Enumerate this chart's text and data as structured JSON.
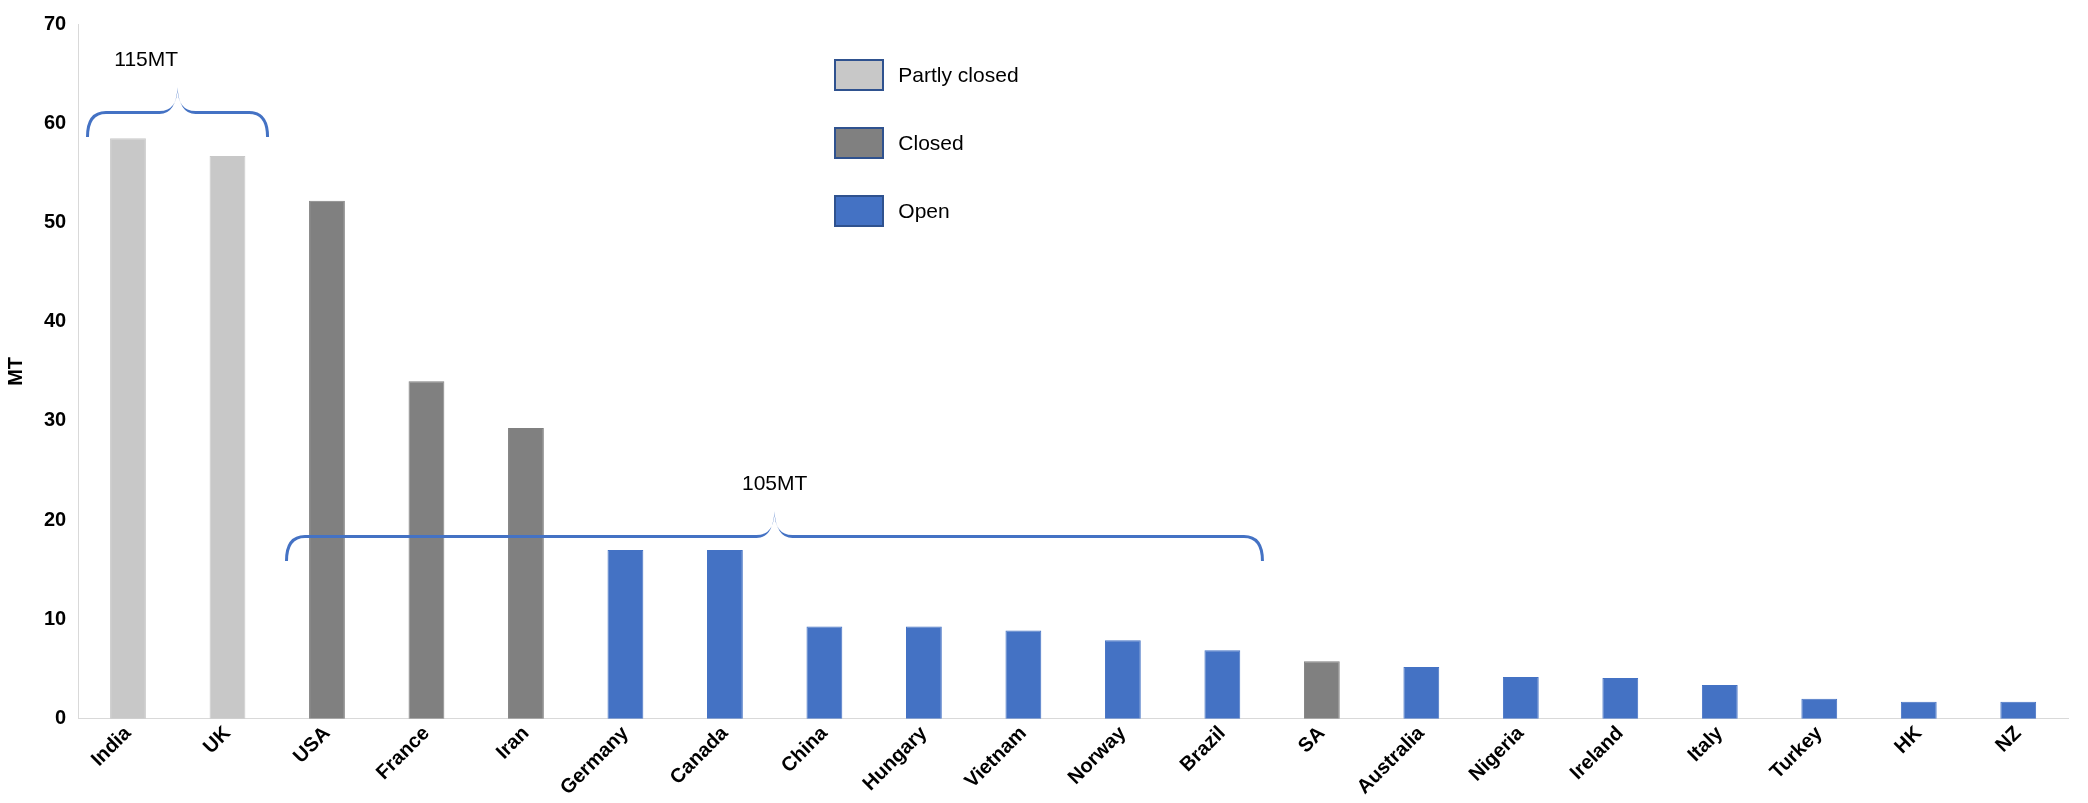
{
  "chart_data": {
    "type": "bar",
    "ylabel": "MT",
    "categories": [
      "India",
      "UK",
      "USA",
      "France",
      "Iran",
      "Germany",
      "Canada",
      "China",
      "Hungary",
      "Vietnam",
      "Norway",
      "Brazil",
      "SA",
      "Australia",
      "Nigeria",
      "Ireland",
      "Italy",
      "Turkey",
      "HK",
      "NZ"
    ],
    "series": [
      {
        "name": "Partly closed",
        "color": "#c8c8c8",
        "values": [
          58.5,
          56.7,
          null,
          null,
          null,
          null,
          null,
          null,
          null,
          null,
          null,
          null,
          null,
          null,
          null,
          null,
          null,
          null,
          null,
          null
        ]
      },
      {
        "name": "Closed",
        "color": "#808080",
        "values": [
          null,
          null,
          52.2,
          34.0,
          29.3,
          null,
          null,
          null,
          null,
          null,
          null,
          null,
          5.8,
          null,
          null,
          null,
          null,
          null,
          null,
          null
        ]
      },
      {
        "name": "Open",
        "color": "#4472c4",
        "values": [
          null,
          null,
          null,
          null,
          null,
          17.0,
          17.0,
          9.3,
          9.3,
          8.9,
          7.9,
          6.9,
          null,
          5.2,
          4.2,
          4.1,
          3.4,
          2.0,
          1.7,
          1.7
        ]
      }
    ],
    "ylim": [
      0,
      70
    ],
    "yticks": [
      0,
      10,
      20,
      30,
      40,
      50,
      60,
      70
    ],
    "grid": false,
    "legend": "top",
    "annotations": [
      "115MT",
      "105MT"
    ]
  }
}
